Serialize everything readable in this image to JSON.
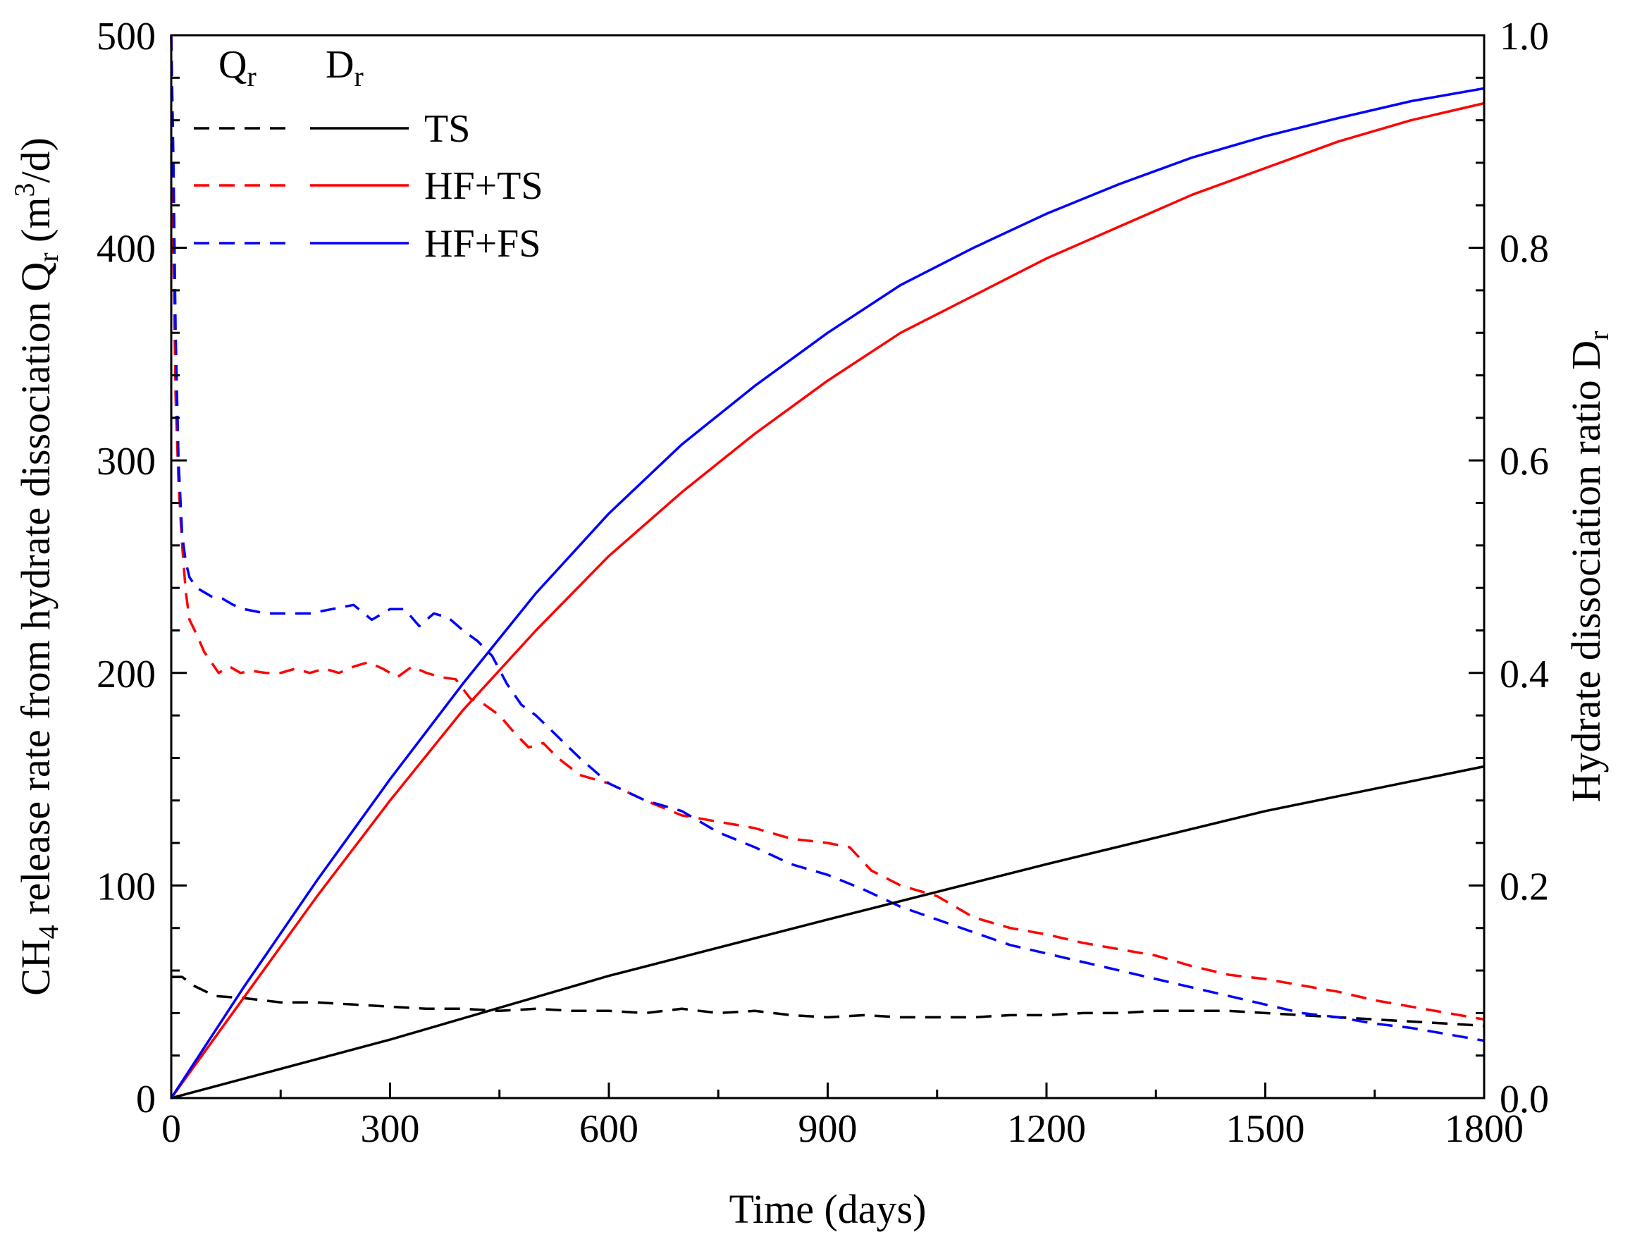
{
  "chart_data": {
    "type": "line",
    "title": "",
    "xlabel": "Time (days)",
    "ylabel": {
      "prefix": "CH",
      "sub1": "4",
      "mid": " release rate from hydrate dissociation Q",
      "sub2": "r",
      "after": " (m",
      "sup": "3",
      "end": "/d)"
    },
    "y2label": {
      "main": "Hydrate dissociation ratio D",
      "sub": "r"
    },
    "xlim": [
      0,
      1800
    ],
    "ylim": [
      0,
      500
    ],
    "y2lim": [
      0,
      1.0
    ],
    "x_ticks": [
      "0",
      "300",
      "600",
      "900",
      "1200",
      "1500",
      "1800"
    ],
    "y_ticks": [
      "0",
      "100",
      "200",
      "300",
      "400",
      "500"
    ],
    "y2_ticks": [
      "0.0",
      "0.2",
      "0.4",
      "0.6",
      "0.8",
      "1.0"
    ],
    "legend": {
      "header_q": {
        "main": "Q",
        "sub": "r"
      },
      "header_d": {
        "main": "D",
        "sub": "r"
      },
      "entries": [
        "TS",
        "HF+TS",
        "HF+FS"
      ],
      "position": "top-left"
    },
    "colors": {
      "TS": "#000000",
      "HF+TS": "#ff0000",
      "HF+FS": "#0000ff"
    },
    "series": [
      {
        "name": "TS",
        "quantity": "Qr",
        "axis": "left",
        "style": "dashed",
        "color": "#000000",
        "x": [
          0,
          15,
          30,
          60,
          100,
          150,
          200,
          250,
          300,
          350,
          400,
          450,
          500,
          550,
          600,
          650,
          700,
          750,
          800,
          850,
          900,
          950,
          1000,
          1050,
          1100,
          1150,
          1200,
          1250,
          1300,
          1350,
          1400,
          1450,
          1500,
          1550,
          1600,
          1650,
          1700,
          1750,
          1800
        ],
        "y": [
          57,
          57,
          53,
          48,
          47,
          45,
          45,
          44,
          43,
          42,
          42,
          41,
          42,
          41,
          41,
          40,
          42,
          40,
          41,
          39,
          38,
          39,
          38,
          38,
          38,
          39,
          39,
          40,
          40,
          41,
          41,
          41,
          40,
          39,
          38,
          37,
          36,
          35,
          34
        ]
      },
      {
        "name": "HF+TS",
        "quantity": "Qr",
        "axis": "left",
        "style": "dashed",
        "color": "#ff0000",
        "x": [
          0,
          3,
          6,
          10,
          15,
          20,
          25,
          35,
          45,
          55,
          65,
          80,
          95,
          110,
          130,
          150,
          170,
          190,
          210,
          230,
          250,
          270,
          290,
          310,
          330,
          350,
          370,
          390,
          410,
          430,
          450,
          470,
          490,
          510,
          530,
          560,
          600,
          650,
          700,
          750,
          800,
          850,
          900,
          930,
          960,
          1000,
          1050,
          1100,
          1150,
          1200,
          1250,
          1300,
          1350,
          1400,
          1450,
          1500,
          1550,
          1600,
          1650,
          1700,
          1750,
          1800
        ],
        "y": [
          500,
          400,
          330,
          290,
          260,
          238,
          225,
          218,
          210,
          205,
          200,
          203,
          200,
          201,
          200,
          200,
          202,
          200,
          202,
          200,
          203,
          205,
          202,
          198,
          203,
          200,
          198,
          197,
          188,
          185,
          180,
          172,
          165,
          167,
          160,
          152,
          148,
          140,
          133,
          130,
          127,
          122,
          120,
          118,
          107,
          100,
          95,
          85,
          80,
          77,
          73,
          70,
          67,
          62,
          58,
          56,
          53,
          50,
          46,
          43,
          40,
          37
        ]
      },
      {
        "name": "HF+FS",
        "quantity": "Qr",
        "axis": "left",
        "style": "dashed",
        "color": "#0000ff",
        "x": [
          0,
          3,
          6,
          10,
          15,
          20,
          25,
          35,
          45,
          55,
          70,
          85,
          100,
          130,
          160,
          190,
          220,
          250,
          275,
          300,
          320,
          340,
          360,
          380,
          400,
          420,
          440,
          460,
          480,
          500,
          530,
          560,
          600,
          650,
          700,
          750,
          800,
          850,
          900,
          950,
          1000,
          1050,
          1100,
          1150,
          1200,
          1250,
          1300,
          1350,
          1400,
          1450,
          1500,
          1550,
          1600,
          1650,
          1700,
          1750,
          1800
        ],
        "y": [
          500,
          440,
          360,
          300,
          265,
          252,
          245,
          240,
          238,
          236,
          235,
          232,
          230,
          228,
          228,
          228,
          230,
          232,
          225,
          230,
          230,
          222,
          228,
          226,
          220,
          215,
          208,
          195,
          185,
          180,
          170,
          160,
          148,
          140,
          135,
          125,
          118,
          110,
          105,
          98,
          90,
          84,
          78,
          72,
          68,
          64,
          60,
          56,
          52,
          48,
          44,
          40,
          38,
          35,
          33,
          30,
          27
        ]
      },
      {
        "name": "TS",
        "quantity": "Dr",
        "axis": "right",
        "style": "solid",
        "color": "#000000",
        "x": [
          0,
          300,
          600,
          900,
          1200,
          1500,
          1800
        ],
        "y": [
          0,
          0.055,
          0.115,
          0.168,
          0.22,
          0.27,
          0.312
        ]
      },
      {
        "name": "HF+TS",
        "quantity": "Dr",
        "axis": "right",
        "style": "solid",
        "color": "#ff0000",
        "x": [
          0,
          100,
          200,
          300,
          400,
          500,
          600,
          700,
          800,
          900,
          1000,
          1100,
          1200,
          1300,
          1400,
          1500,
          1600,
          1700,
          1800
        ],
        "y": [
          0,
          0.095,
          0.19,
          0.28,
          0.365,
          0.44,
          0.51,
          0.57,
          0.625,
          0.675,
          0.72,
          0.755,
          0.79,
          0.82,
          0.85,
          0.875,
          0.9,
          0.92,
          0.936
        ]
      },
      {
        "name": "HF+FS",
        "quantity": "Dr",
        "axis": "right",
        "style": "solid",
        "color": "#0000ff",
        "x": [
          0,
          100,
          200,
          300,
          400,
          500,
          600,
          700,
          800,
          900,
          1000,
          1100,
          1200,
          1300,
          1400,
          1500,
          1600,
          1700,
          1800
        ],
        "y": [
          0,
          0.105,
          0.205,
          0.3,
          0.39,
          0.475,
          0.55,
          0.615,
          0.67,
          0.72,
          0.765,
          0.8,
          0.832,
          0.86,
          0.885,
          0.905,
          0.922,
          0.938,
          0.95
        ]
      }
    ]
  }
}
